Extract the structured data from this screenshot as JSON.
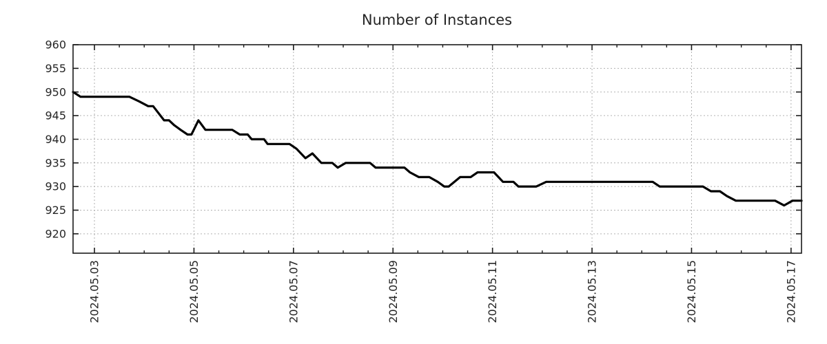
{
  "chart_data": {
    "type": "line",
    "title": "Number of Instances",
    "grid": {
      "style": "dotted",
      "color": "#b0b0b0"
    },
    "frame_color": "#1a1a1a",
    "text_color": "#262626",
    "x_axis": {
      "unit": "days_from_2024_05_03",
      "range": [
        -0.43,
        14.21
      ],
      "minor_tick_step_days": 0.5,
      "major_ticks": [
        {
          "days": 0,
          "label": "2024.05.03"
        },
        {
          "days": 2,
          "label": "2024.05.05"
        },
        {
          "days": 4,
          "label": "2024.05.07"
        },
        {
          "days": 6,
          "label": "2024.05.09"
        },
        {
          "days": 8,
          "label": "2024.05.11"
        },
        {
          "days": 10,
          "label": "2024.05.13"
        },
        {
          "days": 12,
          "label": "2024.05.15"
        },
        {
          "days": 14,
          "label": "2024.05.17"
        }
      ]
    },
    "y_axis": {
      "range": [
        915.9,
        960
      ],
      "ticks": [
        {
          "value": 960,
          "label": "960"
        },
        {
          "value": 955,
          "label": "955"
        },
        {
          "value": 950,
          "label": "950"
        },
        {
          "value": 945,
          "label": "945"
        },
        {
          "value": 940,
          "label": "940"
        },
        {
          "value": 935,
          "label": "935"
        },
        {
          "value": 930,
          "label": "930"
        },
        {
          "value": 925,
          "label": "925"
        },
        {
          "value": 920,
          "label": "920"
        }
      ]
    },
    "series": [
      {
        "name": "instances",
        "color": "#000000",
        "points": [
          [
            -0.43,
            950
          ],
          [
            -0.28,
            949
          ],
          [
            0.7,
            949
          ],
          [
            0.9,
            948
          ],
          [
            1.08,
            947
          ],
          [
            1.18,
            947
          ],
          [
            1.4,
            944
          ],
          [
            1.5,
            944
          ],
          [
            1.6,
            943
          ],
          [
            1.73,
            942
          ],
          [
            1.87,
            941
          ],
          [
            1.95,
            941
          ],
          [
            2.09,
            944
          ],
          [
            2.23,
            942
          ],
          [
            2.77,
            942
          ],
          [
            2.92,
            941
          ],
          [
            3.08,
            941
          ],
          [
            3.16,
            940
          ],
          [
            3.41,
            940
          ],
          [
            3.48,
            939
          ],
          [
            3.92,
            939
          ],
          [
            4.06,
            938
          ],
          [
            4.24,
            936
          ],
          [
            4.38,
            937
          ],
          [
            4.56,
            935
          ],
          [
            4.78,
            935
          ],
          [
            4.89,
            934
          ],
          [
            5.05,
            935
          ],
          [
            5.54,
            935
          ],
          [
            5.65,
            934
          ],
          [
            6.23,
            934
          ],
          [
            6.34,
            933
          ],
          [
            6.52,
            932
          ],
          [
            6.73,
            932
          ],
          [
            6.9,
            931
          ],
          [
            7.03,
            930
          ],
          [
            7.12,
            930
          ],
          [
            7.35,
            932
          ],
          [
            7.56,
            932
          ],
          [
            7.7,
            933
          ],
          [
            8.03,
            933
          ],
          [
            8.12,
            932
          ],
          [
            8.21,
            931
          ],
          [
            8.42,
            931
          ],
          [
            8.52,
            930
          ],
          [
            8.88,
            930
          ],
          [
            9.08,
            931
          ],
          [
            11.22,
            931
          ],
          [
            11.36,
            930
          ],
          [
            12.23,
            930
          ],
          [
            12.39,
            929
          ],
          [
            12.57,
            929
          ],
          [
            12.71,
            928
          ],
          [
            12.89,
            927
          ],
          [
            13.68,
            927
          ],
          [
            13.86,
            926
          ],
          [
            14.03,
            927
          ],
          [
            14.21,
            927
          ]
        ]
      }
    ]
  }
}
